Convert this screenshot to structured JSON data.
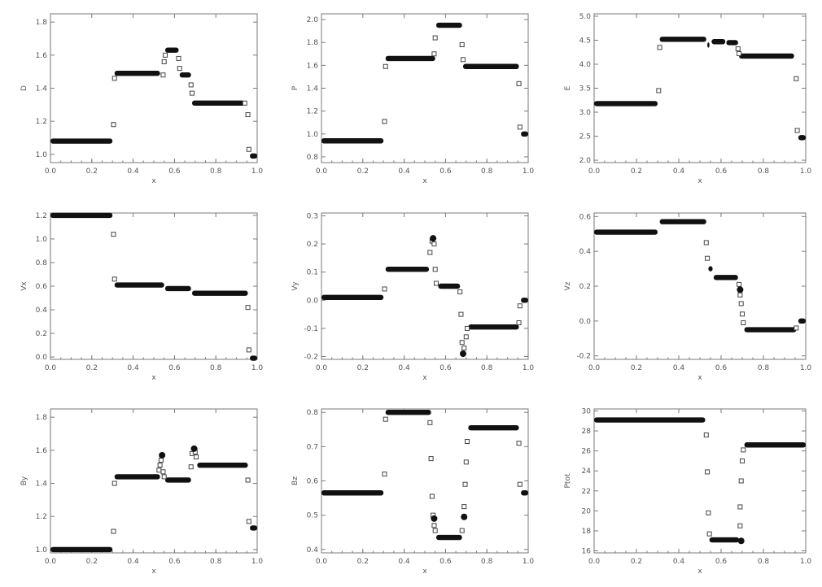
{
  "chart_data": [
    {
      "type": "scatter",
      "xlabel": "x",
      "ylabel": "D",
      "xlim": [
        0,
        1
      ],
      "ylim": [
        0.95,
        1.85
      ],
      "xticks": [
        "0.0",
        "0.2",
        "0.4",
        "0.6",
        "0.8",
        "1.0"
      ],
      "yticks": [
        "1.0",
        "1.2",
        "1.4",
        "1.6",
        "1.8"
      ],
      "segments": [
        [
          0,
          0.3,
          1.08
        ],
        [
          0.31,
          0.53,
          1.49
        ],
        [
          0.555,
          0.62,
          1.63
        ],
        [
          0.625,
          0.68,
          1.48
        ],
        [
          0.685,
          0.94,
          1.31
        ],
        [
          0.965,
          1.0,
          0.99
        ]
      ],
      "points": [
        [
          0.305,
          1.18
        ],
        [
          0.31,
          1.46
        ],
        [
          0.545,
          1.48
        ],
        [
          0.55,
          1.56
        ],
        [
          0.555,
          1.6
        ],
        [
          0.62,
          1.58
        ],
        [
          0.625,
          1.52
        ],
        [
          0.68,
          1.42
        ],
        [
          0.685,
          1.37
        ],
        [
          0.94,
          1.31
        ],
        [
          0.955,
          1.24
        ],
        [
          0.96,
          1.03
        ]
      ]
    },
    {
      "type": "scatter",
      "xlabel": "x",
      "ylabel": "P",
      "xlim": [
        0,
        1
      ],
      "ylim": [
        0.75,
        2.05
      ],
      "xticks": [
        "0.0",
        "0.2",
        "0.4",
        "0.6",
        "0.8",
        "1.0"
      ],
      "yticks": [
        "0.8",
        "1.0",
        "1.2",
        "1.4",
        "1.6",
        "1.8",
        "2.0"
      ],
      "segments": [
        [
          0,
          0.3,
          0.94
        ],
        [
          0.31,
          0.55,
          1.66
        ],
        [
          0.555,
          0.68,
          1.95
        ],
        [
          0.685,
          0.955,
          1.59
        ],
        [
          0.965,
          1.0,
          1.0
        ]
      ],
      "points": [
        [
          0.305,
          1.11
        ],
        [
          0.31,
          1.59
        ],
        [
          0.545,
          1.7
        ],
        [
          0.55,
          1.84
        ],
        [
          0.68,
          1.78
        ],
        [
          0.685,
          1.65
        ],
        [
          0.955,
          1.44
        ],
        [
          0.96,
          1.06
        ]
      ]
    },
    {
      "type": "scatter",
      "xlabel": "x",
      "ylabel": "E",
      "xlim": [
        0,
        1
      ],
      "ylim": [
        1.95,
        5.05
      ],
      "xticks": [
        "0.0",
        "0.2",
        "0.4",
        "0.6",
        "0.8",
        "1.0"
      ],
      "yticks": [
        "2.0",
        "2.5",
        "3.0",
        "3.5",
        "4.0",
        "4.5",
        "5.0"
      ],
      "segments": [
        [
          0,
          0.3,
          3.18
        ],
        [
          0.31,
          0.53,
          4.52
        ],
        [
          0.535,
          0.545,
          4.4
        ],
        [
          0.555,
          0.62,
          4.47
        ],
        [
          0.625,
          0.68,
          4.45
        ],
        [
          0.685,
          0.945,
          4.17
        ],
        [
          0.965,
          1.0,
          2.47
        ]
      ],
      "points": [
        [
          0.305,
          3.45
        ],
        [
          0.31,
          4.35
        ],
        [
          0.68,
          4.32
        ],
        [
          0.685,
          4.22
        ],
        [
          0.955,
          3.7
        ],
        [
          0.96,
          2.62
        ]
      ]
    },
    {
      "type": "scatter",
      "xlabel": "x",
      "ylabel": "Vx",
      "xlim": [
        0,
        1
      ],
      "ylim": [
        -0.02,
        1.22
      ],
      "xticks": [
        "0.0",
        "0.2",
        "0.4",
        "0.6",
        "0.8",
        "1.0"
      ],
      "yticks": [
        "0.0",
        "0.2",
        "0.4",
        "0.6",
        "0.8",
        "1.0",
        "1.2"
      ],
      "segments": [
        [
          0,
          0.3,
          1.2
        ],
        [
          0.31,
          0.55,
          0.61
        ],
        [
          0.555,
          0.68,
          0.58
        ],
        [
          0.685,
          0.955,
          0.54
        ],
        [
          0.965,
          1.0,
          -0.01
        ]
      ],
      "points": [
        [
          0.305,
          1.04
        ],
        [
          0.31,
          0.66
        ],
        [
          0.955,
          0.42
        ],
        [
          0.96,
          0.06
        ]
      ]
    },
    {
      "type": "scatter",
      "xlabel": "x",
      "ylabel": "Vy",
      "xlim": [
        -0.21,
        0.31
      ],
      "ylim": [
        -0.21,
        0.31
      ],
      "xlim_override": [
        0,
        1
      ],
      "xticks": [
        "0.0",
        "0.2",
        "0.4",
        "0.6",
        "0.8",
        "1.0"
      ],
      "yticks": [
        "-0.2",
        "-0.1",
        "0.0",
        "0.1",
        "0.2",
        "0.3"
      ],
      "segments": [
        [
          0,
          0.3,
          0.01
        ],
        [
          0.31,
          0.52,
          0.11
        ],
        [
          0.565,
          0.67,
          0.05
        ],
        [
          0.71,
          0.955,
          -0.095
        ],
        [
          0.965,
          1.0,
          0.0
        ]
      ],
      "points": [
        [
          0.305,
          0.04
        ],
        [
          0.525,
          0.17
        ],
        [
          0.535,
          0.21
        ],
        [
          0.545,
          0.2
        ],
        [
          0.55,
          0.11
        ],
        [
          0.555,
          0.06
        ],
        [
          0.67,
          0.03
        ],
        [
          0.675,
          -0.05
        ],
        [
          0.68,
          -0.15
        ],
        [
          0.69,
          -0.17
        ],
        [
          0.7,
          -0.13
        ],
        [
          0.705,
          -0.1
        ],
        [
          0.955,
          -0.08
        ],
        [
          0.96,
          -0.02
        ]
      ],
      "blobs": [
        [
          0.54,
          0.22
        ],
        [
          0.685,
          -0.19
        ]
      ]
    },
    {
      "type": "scatter",
      "xlabel": "x",
      "ylabel": "Vz",
      "xlim": [
        0,
        1
      ],
      "ylim": [
        -0.22,
        0.62
      ],
      "xticks": [
        "0.0",
        "0.2",
        "0.4",
        "0.6",
        "0.8",
        "1.0"
      ],
      "yticks": [
        "-0.2",
        "0.0",
        "0.2",
        "0.4",
        "0.6"
      ],
      "segments": [
        [
          0,
          0.3,
          0.51
        ],
        [
          0.31,
          0.53,
          0.57
        ],
        [
          0.54,
          0.56,
          0.3
        ],
        [
          0.565,
          0.68,
          0.25
        ],
        [
          0.71,
          0.955,
          -0.05
        ],
        [
          0.965,
          1.0,
          0.0
        ]
      ],
      "points": [
        [
          0.53,
          0.45
        ],
        [
          0.535,
          0.36
        ],
        [
          0.685,
          0.21
        ],
        [
          0.69,
          0.15
        ],
        [
          0.695,
          0.1
        ],
        [
          0.7,
          0.04
        ],
        [
          0.705,
          -0.01
        ],
        [
          0.955,
          -0.04
        ]
      ],
      "blobs": [
        [
          0.69,
          0.18
        ]
      ]
    },
    {
      "type": "scatter",
      "xlabel": "x",
      "ylabel": "By",
      "xlim": [
        0,
        1
      ],
      "ylim": [
        0.98,
        1.85
      ],
      "xticks": [
        "0.0",
        "0.2",
        "0.4",
        "0.6",
        "0.8",
        "1.0"
      ],
      "yticks": [
        "1.0",
        "1.2",
        "1.4",
        "1.6",
        "1.8"
      ],
      "segments": [
        [
          0,
          0.3,
          1.0
        ],
        [
          0.31,
          0.53,
          1.44
        ],
        [
          0.555,
          0.68,
          1.42
        ],
        [
          0.71,
          0.955,
          1.51
        ],
        [
          0.965,
          1.0,
          1.13
        ]
      ],
      "points": [
        [
          0.305,
          1.11
        ],
        [
          0.31,
          1.4
        ],
        [
          0.525,
          1.48
        ],
        [
          0.53,
          1.51
        ],
        [
          0.535,
          1.54
        ],
        [
          0.545,
          1.47
        ],
        [
          0.55,
          1.44
        ],
        [
          0.68,
          1.5
        ],
        [
          0.685,
          1.58
        ],
        [
          0.7,
          1.59
        ],
        [
          0.705,
          1.56
        ],
        [
          0.955,
          1.42
        ],
        [
          0.96,
          1.17
        ]
      ],
      "blobs": [
        [
          0.54,
          1.57
        ],
        [
          0.695,
          1.61
        ]
      ]
    },
    {
      "type": "scatter",
      "xlabel": "x",
      "ylabel": "Bz",
      "xlim": [
        0,
        1
      ],
      "ylim": [
        0.39,
        0.81
      ],
      "xticks": [
        "0.0",
        "0.2",
        "0.4",
        "0.6",
        "0.8",
        "1.0"
      ],
      "yticks": [
        "0.4",
        "0.5",
        "0.6",
        "0.7",
        "0.8"
      ],
      "segments": [
        [
          0,
          0.3,
          0.565
        ],
        [
          0.31,
          0.53,
          0.8
        ],
        [
          0.555,
          0.68,
          0.435
        ],
        [
          0.71,
          0.955,
          0.755
        ],
        [
          0.965,
          1.0,
          0.565
        ]
      ],
      "points": [
        [
          0.305,
          0.62
        ],
        [
          0.31,
          0.78
        ],
        [
          0.525,
          0.77
        ],
        [
          0.53,
          0.665
        ],
        [
          0.535,
          0.555
        ],
        [
          0.54,
          0.5
        ],
        [
          0.545,
          0.47
        ],
        [
          0.55,
          0.455
        ],
        [
          0.68,
          0.455
        ],
        [
          0.69,
          0.525
        ],
        [
          0.695,
          0.59
        ],
        [
          0.7,
          0.655
        ],
        [
          0.705,
          0.715
        ],
        [
          0.955,
          0.71
        ],
        [
          0.96,
          0.59
        ]
      ],
      "blobs": [
        [
          0.545,
          0.49
        ],
        [
          0.69,
          0.495
        ]
      ]
    },
    {
      "type": "scatter",
      "xlabel": "x",
      "ylabel": "Ptot",
      "xlim": [
        0,
        1
      ],
      "ylim": [
        15.8,
        30.2
      ],
      "xticks": [
        "0.0",
        "0.2",
        "0.4",
        "0.6",
        "0.8",
        "1.0"
      ],
      "yticks": [
        "16",
        "18",
        "20",
        "22",
        "24",
        "26",
        "28",
        "30"
      ],
      "segments": [
        [
          0,
          0.525,
          29.1
        ],
        [
          0.545,
          0.685,
          17.1
        ],
        [
          0.71,
          1.0,
          26.6
        ]
      ],
      "points": [
        [
          0.53,
          27.6
        ],
        [
          0.535,
          23.9
        ],
        [
          0.54,
          19.8
        ],
        [
          0.545,
          17.7
        ],
        [
          0.69,
          20.4
        ],
        [
          0.695,
          23.0
        ],
        [
          0.7,
          25.0
        ],
        [
          0.705,
          26.1
        ],
        [
          0.69,
          18.5
        ]
      ],
      "blobs": [
        [
          0.695,
          17.0
        ]
      ]
    }
  ]
}
